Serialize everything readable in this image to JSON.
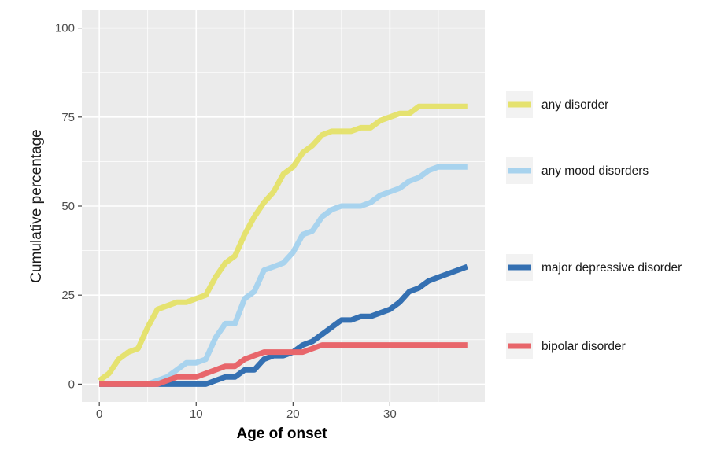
{
  "chart_data": {
    "type": "line",
    "xlabel": "Age of onset",
    "ylabel": "Cumulative percentage",
    "xlim": [
      -1.8,
      39.8
    ],
    "ylim": [
      -5,
      105
    ],
    "x_ticks": [
      0,
      10,
      20,
      30
    ],
    "y_ticks": [
      0,
      25,
      50,
      75,
      100
    ],
    "x_tick_labels": [
      "0",
      "10",
      "20",
      "30"
    ],
    "y_tick_labels": [
      "0",
      "25",
      "50",
      "75",
      "100"
    ],
    "grid": true,
    "legend_position": "right",
    "panel_background": "#ebebeb",
    "x": [
      0,
      1,
      2,
      3,
      4,
      5,
      6,
      7,
      8,
      9,
      10,
      11,
      12,
      13,
      14,
      15,
      16,
      17,
      18,
      19,
      20,
      21,
      22,
      23,
      24,
      25,
      26,
      27,
      28,
      29,
      30,
      31,
      32,
      33,
      34,
      35,
      36,
      37,
      38
    ],
    "series": [
      {
        "name": "any disorder",
        "color": "#e5e26f",
        "values": [
          1,
          3,
          7,
          9,
          10,
          16,
          21,
          22,
          23,
          23,
          24,
          25,
          30,
          34,
          36,
          42,
          47,
          51,
          54,
          59,
          61,
          65,
          67,
          70,
          71,
          71,
          71,
          72,
          72,
          74,
          75,
          76,
          76,
          78,
          78,
          78,
          78,
          78,
          78
        ]
      },
      {
        "name": "any mood disorders",
        "color": "#a8d3ee",
        "values": [
          0,
          0,
          0,
          0,
          0,
          0,
          1,
          2,
          4,
          6,
          6,
          7,
          13,
          17,
          17,
          24,
          26,
          32,
          33,
          34,
          37,
          42,
          43,
          47,
          49,
          50,
          50,
          50,
          51,
          53,
          54,
          55,
          57,
          58,
          60,
          61,
          61,
          61,
          61
        ]
      },
      {
        "name": "major depressive disorder",
        "color": "#3470b2",
        "values": [
          0,
          0,
          0,
          0,
          0,
          0,
          0,
          0,
          0,
          0,
          0,
          0,
          1,
          2,
          2,
          4,
          4,
          7,
          8,
          8,
          9,
          11,
          12,
          14,
          16,
          18,
          18,
          19,
          19,
          20,
          21,
          23,
          26,
          27,
          29,
          30,
          31,
          32,
          33
        ]
      },
      {
        "name": "bipolar disorder",
        "color": "#e8666b",
        "values": [
          0,
          0,
          0,
          0,
          0,
          0,
          0,
          1,
          2,
          2,
          2,
          3,
          4,
          5,
          5,
          7,
          8,
          9,
          9,
          9,
          9,
          9,
          10,
          11,
          11,
          11,
          11,
          11,
          11,
          11,
          11,
          11,
          11,
          11,
          11,
          11,
          11,
          11,
          11
        ]
      }
    ]
  }
}
